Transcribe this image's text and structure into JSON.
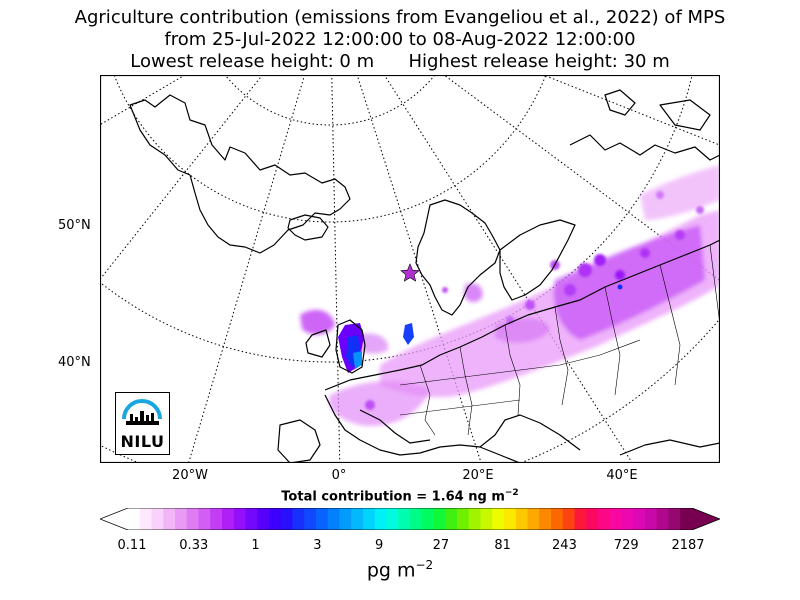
{
  "title": {
    "line1": "Agriculture contribution (emissions from Evangeliou et al., 2022) of MPS",
    "line2": "from 25-Jul-2022 12:00:00 to 08-Aug-2022 12:00:00",
    "line3": "Lowest release height: 0 m      Highest release height: 30 m"
  },
  "map": {
    "lat_labels": [
      "50°N",
      "40°N"
    ],
    "lon_labels": [
      "20°W",
      "0°",
      "20°E",
      "40°E"
    ],
    "station_marker": "star",
    "colors": {
      "plume": "#d040ff",
      "plume_dense": "#8a00ff",
      "high": "#1040ff",
      "marker": "#b030d0"
    }
  },
  "logo": {
    "text": "NILU",
    "icon": "nilu-logo-icon"
  },
  "summary": {
    "total_prefix": "Total contribution = 1.64 ng m",
    "total_exp": "−2"
  },
  "colorbar": {
    "ticks": [
      "0.11",
      "0.33",
      "1",
      "3",
      "9",
      "27",
      "81",
      "243",
      "729",
      "2187"
    ],
    "colors": [
      "#ffffff",
      "#fde8fd",
      "#f9d2fb",
      "#f2b6f7",
      "#e99af5",
      "#df7cf4",
      "#d35ef3",
      "#c33ef2",
      "#b020f5",
      "#9410f8",
      "#7408fa",
      "#5600fb",
      "#3c00fc",
      "#2810fc",
      "#1830fc",
      "#1048fc",
      "#0864fc",
      "#0480fc",
      "#049cfc",
      "#04b8fc",
      "#00d4fc",
      "#00f0f8",
      "#00fcdc",
      "#00fcb0",
      "#00fc88",
      "#00fc60",
      "#10f838",
      "#40f010",
      "#70f000",
      "#a0f400",
      "#c8f800",
      "#eefc00",
      "#fce800",
      "#fcc800",
      "#fca800",
      "#fc8800",
      "#fc6800",
      "#fc4410",
      "#fc1838",
      "#fc0860",
      "#fc0884",
      "#f808a0",
      "#ec08b0",
      "#dc08b4",
      "#c808a8",
      "#b0088c",
      "#940870",
      "#780050"
    ],
    "units_text": "pg m",
    "units_exp": "−2"
  }
}
